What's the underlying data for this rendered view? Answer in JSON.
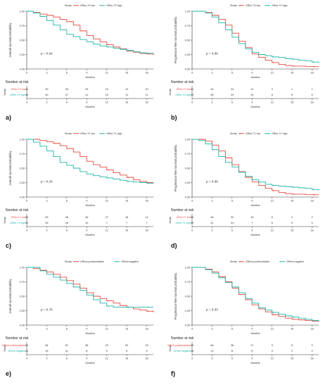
{
  "colors": {
    "low": "#e8483f",
    "high": "#1fb5a8"
  },
  "common": {
    "xlabel": "Months",
    "risk_title": "Number at risk",
    "strata_label": "Strata",
    "legend_title": "Strata",
    "x_ticks": [
      0,
      3,
      6,
      9,
      12,
      15,
      18
    ],
    "y_ticks": [
      "0.00",
      "0.25",
      "0.50",
      "0.75",
      "1.00"
    ]
  },
  "chart_data": [
    {
      "panel_label": "a)",
      "type": "line",
      "ylabel": "Overall survival probability",
      "pvalue": "p = 0.64",
      "legend": [
        "GRim-T0 low",
        "GRim-T0 high"
      ],
      "xlim": [
        0,
        19
      ],
      "ylim": [
        0,
        1
      ],
      "series": [
        {
          "name": "GRim-T0 low",
          "color": "#e8483f",
          "x": [
            0,
            1,
            2,
            3,
            4,
            5,
            6,
            7,
            8,
            9,
            10,
            11,
            12,
            13,
            14,
            15,
            16,
            17,
            18,
            19
          ],
          "y": [
            1.0,
            0.98,
            0.95,
            0.93,
            0.9,
            0.86,
            0.82,
            0.76,
            0.66,
            0.58,
            0.52,
            0.47,
            0.42,
            0.38,
            0.35,
            0.31,
            0.29,
            0.27,
            0.26,
            0.24
          ]
        },
        {
          "name": "GRim-T0 high",
          "color": "#1fb5a8",
          "x": [
            0,
            1,
            2,
            3,
            4,
            5,
            6,
            7,
            8,
            9,
            10,
            11,
            12,
            13,
            14,
            15,
            16,
            17,
            18,
            19
          ],
          "y": [
            1.0,
            0.97,
            0.91,
            0.84,
            0.76,
            0.68,
            0.6,
            0.56,
            0.51,
            0.47,
            0.43,
            0.4,
            0.38,
            0.36,
            0.34,
            0.32,
            0.3,
            0.28,
            0.27,
            0.26
          ]
        }
      ],
      "risk_table": [
        {
          "label": "GRim-T0 low",
          "values": [
            "41",
            "39",
            "35",
            "25",
            "19",
            "14",
            "10"
          ]
        },
        {
          "label": "GRim-T0 high",
          "values": [
            "45",
            "40",
            "27",
            "21",
            "15",
            "11",
            "11"
          ]
        }
      ]
    },
    {
      "panel_label": "b)",
      "type": "line",
      "ylabel": "Progression-free survival probability",
      "pvalue": "p = 0.88",
      "legend": [
        "GRim-T0 low",
        "GRim-T0 high"
      ],
      "xlim": [
        0,
        19
      ],
      "ylim": [
        0,
        1
      ],
      "series": [
        {
          "name": "GRim-T0 low",
          "color": "#e8483f",
          "x": [
            0,
            1,
            2,
            3,
            4,
            5,
            6,
            7,
            8,
            9,
            10,
            11,
            12,
            13,
            14,
            15,
            16,
            17,
            18,
            19
          ],
          "y": [
            1.0,
            1.0,
            0.98,
            0.93,
            0.86,
            0.76,
            0.62,
            0.48,
            0.37,
            0.26,
            0.2,
            0.15,
            0.11,
            0.08,
            0.06,
            0.05,
            0.05,
            0.04,
            0.04,
            0.04
          ]
        },
        {
          "name": "GRim-T0 high",
          "color": "#1fb5a8",
          "x": [
            0,
            1,
            2,
            3,
            4,
            5,
            6,
            7,
            8,
            9,
            10,
            11,
            12,
            13,
            14,
            15,
            16,
            17,
            18,
            19
          ],
          "y": [
            1.0,
            1.0,
            0.97,
            0.9,
            0.8,
            0.68,
            0.55,
            0.44,
            0.35,
            0.29,
            0.25,
            0.23,
            0.21,
            0.2,
            0.18,
            0.17,
            0.15,
            0.14,
            0.12,
            0.1
          ]
        }
      ],
      "risk_table": [
        {
          "label": "GRim-T0 low",
          "values": [
            "41",
            "34",
            "23",
            "12",
            "4",
            "1",
            "1"
          ]
        },
        {
          "label": "GRim-T0 high",
          "values": [
            "43",
            "35",
            "23",
            "10",
            "8",
            "6",
            "6"
          ]
        }
      ]
    },
    {
      "panel_label": "c)",
      "type": "line",
      "ylabel": "Overall survival probability",
      "pvalue": "p = 0.33",
      "legend": [
        "GRim-T1 low",
        "GRim-T1 high"
      ],
      "xlim": [
        0,
        19
      ],
      "ylim": [
        0,
        1
      ],
      "series": [
        {
          "name": "GRim-T1 low",
          "color": "#e8483f",
          "x": [
            0,
            1,
            2,
            3,
            4,
            5,
            6,
            7,
            8,
            9,
            10,
            11,
            12,
            13,
            14,
            15,
            16,
            17,
            18,
            19
          ],
          "y": [
            1.0,
            1.0,
            0.98,
            0.96,
            0.93,
            0.89,
            0.84,
            0.78,
            0.7,
            0.62,
            0.56,
            0.52,
            0.47,
            0.42,
            0.38,
            0.34,
            0.3,
            0.27,
            0.25,
            0.24
          ]
        },
        {
          "name": "GRim-T1 high",
          "color": "#1fb5a8",
          "x": [
            0,
            1,
            2,
            3,
            4,
            5,
            6,
            7,
            8,
            9,
            10,
            11,
            12,
            13,
            14,
            15,
            16,
            17,
            18,
            19
          ],
          "y": [
            1.0,
            0.95,
            0.88,
            0.8,
            0.7,
            0.6,
            0.55,
            0.5,
            0.44,
            0.4,
            0.37,
            0.35,
            0.33,
            0.31,
            0.29,
            0.27,
            0.26,
            0.25,
            0.24,
            0.24
          ]
        }
      ],
      "risk_table": [
        {
          "label": "GRim-T1 low",
          "values": [
            "55",
            "53",
            "46",
            "36",
            "27",
            "18",
            "14"
          ]
        },
        {
          "label": "GRim-T1 high",
          "values": [
            "30",
            "26",
            "16",
            "10",
            "7",
            "7",
            "7"
          ]
        }
      ]
    },
    {
      "panel_label": "d)",
      "type": "line",
      "ylabel": "Progression-free survival probability",
      "pvalue": "p = 0.86",
      "legend": [
        "GRim-T1 low",
        "GRim-T1 high"
      ],
      "xlim": [
        0,
        19
      ],
      "ylim": [
        0,
        1
      ],
      "series": [
        {
          "name": "GRim-T1 low",
          "color": "#e8483f",
          "x": [
            0,
            1,
            2,
            3,
            4,
            5,
            6,
            7,
            8,
            9,
            10,
            11,
            12,
            13,
            14,
            15,
            16,
            17,
            18,
            19
          ],
          "y": [
            1.0,
            1.0,
            0.97,
            0.9,
            0.8,
            0.68,
            0.56,
            0.44,
            0.34,
            0.26,
            0.2,
            0.15,
            0.11,
            0.08,
            0.06,
            0.05,
            0.05,
            0.04,
            0.04,
            0.04
          ]
        },
        {
          "name": "GRim-T1 high",
          "color": "#1fb5a8",
          "x": [
            0,
            1,
            2,
            3,
            4,
            5,
            6,
            7,
            8,
            9,
            10,
            11,
            12,
            13,
            14,
            15,
            16,
            17,
            18,
            19
          ],
          "y": [
            1.0,
            0.98,
            0.92,
            0.82,
            0.7,
            0.6,
            0.52,
            0.43,
            0.36,
            0.3,
            0.26,
            0.22,
            0.2,
            0.19,
            0.18,
            0.17,
            0.16,
            0.15,
            0.13,
            0.11
          ]
        }
      ],
      "risk_table": [
        {
          "label": "GRim-T1 low",
          "values": [
            "55",
            "48",
            "32",
            "15",
            "6",
            "2",
            "2"
          ]
        },
        {
          "label": "GRim-T1 high",
          "values": [
            "30",
            "21",
            "14",
            "7",
            "6",
            "5",
            "5"
          ]
        }
      ]
    },
    {
      "panel_label": "e)",
      "type": "line",
      "ylabel": "Overall survival probability",
      "pvalue": "p = 0.75",
      "legend": [
        "GRInd positive/stable",
        "GRInd negative"
      ],
      "xlim": [
        0,
        19
      ],
      "ylim": [
        0,
        1
      ],
      "series": [
        {
          "name": "GRInd positive/stable",
          "color": "#e8483f",
          "x": [
            0,
            1,
            2,
            3,
            4,
            5,
            6,
            7,
            8,
            9,
            10,
            11,
            12,
            13,
            14,
            15,
            16,
            17,
            18,
            19
          ],
          "y": [
            1.0,
            0.98,
            0.95,
            0.92,
            0.88,
            0.83,
            0.77,
            0.71,
            0.64,
            0.56,
            0.5,
            0.46,
            0.42,
            0.38,
            0.34,
            0.31,
            0.28,
            0.26,
            0.24,
            0.22
          ]
        },
        {
          "name": "GRInd negative",
          "color": "#1fb5a8",
          "x": [
            0,
            1,
            2,
            3,
            4,
            5,
            6,
            7,
            8,
            9,
            10,
            11,
            12,
            13,
            14,
            15,
            16,
            17,
            18,
            19
          ],
          "y": [
            1.0,
            1.0,
            0.94,
            0.88,
            0.83,
            0.78,
            0.72,
            0.66,
            0.6,
            0.52,
            0.44,
            0.38,
            0.33,
            0.31,
            0.31,
            0.31,
            0.31,
            0.31,
            0.31,
            0.31
          ]
        }
      ],
      "risk_table": [
        {
          "label": "GRInd positive/stable",
          "values": [
            "69",
            "64",
            "51",
            "38",
            "29",
            "20",
            "16"
          ]
        },
        {
          "label": "GRInd negative",
          "values": [
            "16",
            "15",
            "11",
            "8",
            "5",
            "5",
            "5"
          ]
        }
      ]
    },
    {
      "panel_label": "f)",
      "type": "line",
      "ylabel": "Progression-free survival probability",
      "pvalue": "p = 0.93",
      "legend": [
        "GRInd positive/stable",
        "GRInd negative"
      ],
      "xlim": [
        0,
        19
      ],
      "ylim": [
        0,
        1
      ],
      "series": [
        {
          "name": "GRInd positive/stable",
          "color": "#e8483f",
          "x": [
            0,
            1,
            2,
            3,
            4,
            5,
            6,
            7,
            8,
            9,
            10,
            11,
            12,
            13,
            14,
            15,
            16,
            17,
            18,
            19
          ],
          "y": [
            1.0,
            1.0,
            0.97,
            0.92,
            0.84,
            0.75,
            0.64,
            0.53,
            0.44,
            0.35,
            0.28,
            0.23,
            0.18,
            0.15,
            0.12,
            0.1,
            0.09,
            0.08,
            0.07,
            0.07
          ]
        },
        {
          "name": "GRInd negative",
          "color": "#1fb5a8",
          "x": [
            0,
            1,
            2,
            3,
            4,
            5,
            6,
            7,
            8,
            9,
            10,
            11,
            12,
            13,
            14,
            15,
            16,
            17,
            18,
            19
          ],
          "y": [
            1.0,
            1.0,
            0.96,
            0.9,
            0.82,
            0.74,
            0.66,
            0.56,
            0.46,
            0.38,
            0.3,
            0.26,
            0.22,
            0.19,
            0.16,
            0.14,
            0.12,
            0.1,
            0.08,
            0.06
          ]
        }
      ],
      "risk_table": [
        {
          "label": "GRInd positive/stable",
          "values": [
            "69",
            "56",
            "38",
            "17",
            "9",
            "5",
            "5"
          ]
        },
        {
          "label": "GRInd negative",
          "values": [
            "16",
            "13",
            "8",
            "5",
            "3",
            "2",
            "2"
          ]
        }
      ]
    }
  ]
}
